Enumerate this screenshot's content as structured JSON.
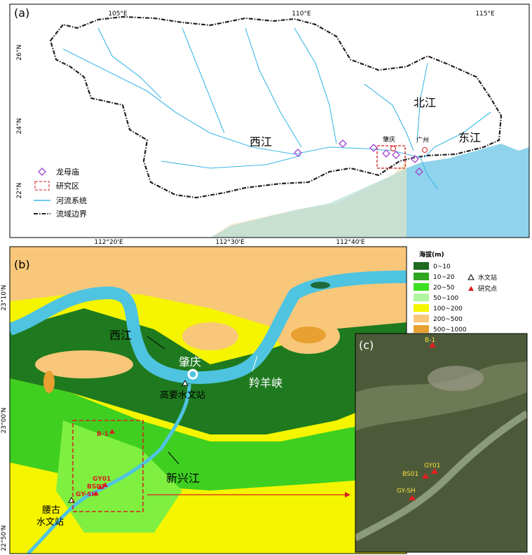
{
  "panel_a": {
    "label": "(a)",
    "lon_labels": [
      "105°E",
      "110°E",
      "115°E"
    ],
    "lat_labels": [
      "26°N",
      "24°N",
      "22°N"
    ],
    "places": [
      "西江",
      "北江",
      "东江",
      "肇庆",
      "广州"
    ],
    "legend": [
      "龙母庙",
      "研究区",
      "河流系统",
      "流域边界"
    ]
  },
  "panel_b": {
    "label": "(b)",
    "lon_labels": [
      "112°20'E",
      "112°30'E",
      "112°40'E"
    ],
    "lat_labels": [
      "23°10'N",
      "23°00'N",
      "22°50'N"
    ],
    "places": [
      "西江",
      "肇庆",
      "羚羊峡",
      "高要水文站",
      "新兴江",
      "腰古",
      "水文站"
    ],
    "sites": [
      "B-1",
      "GY01",
      "BS01",
      "GY-SH"
    ],
    "legend_title": "海拔(m)",
    "elevation_classes": [
      "0~10",
      "10~20",
      "20~50",
      "50~100",
      "100~200",
      "200~500",
      "500~1000"
    ],
    "symbol_legend": [
      "水文站",
      "研究点"
    ]
  },
  "panel_c": {
    "label": "(c)",
    "sites": [
      "B-1",
      "GY01",
      "BS01",
      "GY-SH"
    ]
  }
}
